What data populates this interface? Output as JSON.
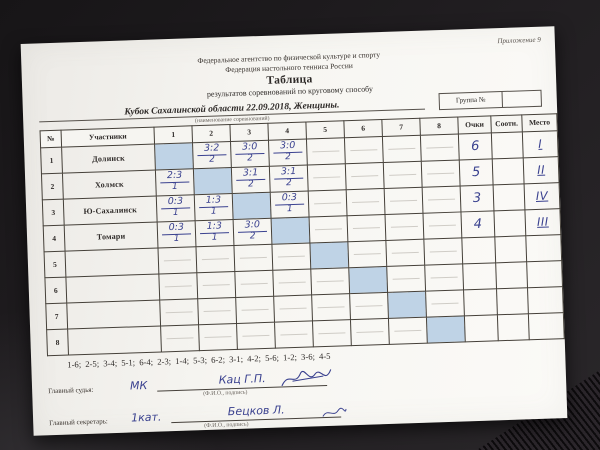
{
  "page": {
    "annex": "Приложение 9",
    "org_line1": "Федеральное агентство по физической культуре и спорту",
    "org_line2": "Федерация настольного тенниса России",
    "title": "Таблица",
    "subtitle": "результатов соревнований по круговому способу",
    "competition": "Кубок Сахалинской области 22.09.2018, Женщины.",
    "competition_caption": "(наименование соревнований)",
    "group_label": "Группа №",
    "group_value": ""
  },
  "table": {
    "headers": {
      "num": "№",
      "participants": "Участники",
      "rounds": [
        "1",
        "2",
        "3",
        "4",
        "5",
        "6",
        "7",
        "8"
      ],
      "points": "Очки",
      "ratio": "Соотн.",
      "place": "Место"
    },
    "rows": [
      {
        "num": "1",
        "name": "Долинск",
        "cells": [
          "self",
          {
            "score": "3:2",
            "pts": "2"
          },
          {
            "score": "3:0",
            "pts": "2"
          },
          {
            "score": "3:0",
            "pts": "2"
          },
          null,
          null,
          null,
          null
        ],
        "points": "6",
        "ratio": "",
        "place": "I"
      },
      {
        "num": "2",
        "name": "Холмск",
        "cells": [
          {
            "score": "2:3",
            "pts": "1"
          },
          "self",
          {
            "score": "3:1",
            "pts": "2"
          },
          {
            "score": "3:1",
            "pts": "2"
          },
          null,
          null,
          null,
          null
        ],
        "points": "5",
        "ratio": "",
        "place": "II"
      },
      {
        "num": "3",
        "name": "Ю-Сахалинск",
        "cells": [
          {
            "score": "0:3",
            "pts": "1"
          },
          {
            "score": "1:3",
            "pts": "1"
          },
          "self",
          {
            "score": "0:3",
            "pts": "1"
          },
          null,
          null,
          null,
          null
        ],
        "points": "3",
        "ratio": "",
        "place": "IV"
      },
      {
        "num": "4",
        "name": "Томари",
        "cells": [
          {
            "score": "0:3",
            "pts": "1"
          },
          {
            "score": "1:3",
            "pts": "1"
          },
          {
            "score": "3:0",
            "pts": "2"
          },
          "self",
          null,
          null,
          null,
          null
        ],
        "points": "4",
        "ratio": "",
        "place": "III"
      },
      {
        "num": "5",
        "name": "",
        "cells": [
          null,
          null,
          null,
          null,
          "self",
          null,
          null,
          null
        ],
        "points": "",
        "ratio": "",
        "place": ""
      },
      {
        "num": "6",
        "name": "",
        "cells": [
          null,
          null,
          null,
          null,
          null,
          "self",
          null,
          null
        ],
        "points": "",
        "ratio": "",
        "place": ""
      },
      {
        "num": "7",
        "name": "",
        "cells": [
          null,
          null,
          null,
          null,
          null,
          null,
          "self",
          null
        ],
        "points": "",
        "ratio": "",
        "place": ""
      },
      {
        "num": "8",
        "name": "",
        "cells": [
          null,
          null,
          null,
          null,
          null,
          null,
          null,
          "self"
        ],
        "points": "",
        "ratio": "",
        "place": ""
      }
    ]
  },
  "schedule": {
    "text": "1-6; 2-5; 3-4; 5-1; 6-4; 2-3;  1-4; 5-3;  6-2; 3-1;  4-2; 5-6;  1-2; 3-6;  4-5"
  },
  "footer": {
    "judge_label": "Главный судья:",
    "judge_hand": "МК",
    "judge_name": "Кац Г.П.",
    "sign_caption": "(Ф.И.О., подпись)",
    "secretary_label": "Главный секретарь:",
    "secretary_hand": "1кат.",
    "secretary_name": "Бецков Л."
  },
  "colors": {
    "ink": "#3a418f",
    "diagonal_cell": "#bfd3e6",
    "paper": "#f7f6f2",
    "background": "#201d20"
  }
}
